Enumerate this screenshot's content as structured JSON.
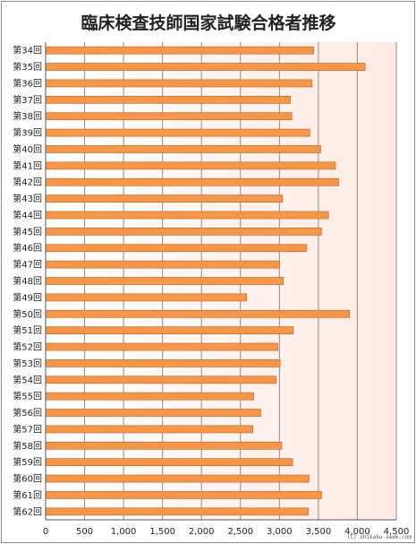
{
  "chart_data": {
    "type": "bar",
    "orientation": "horizontal",
    "title": "臨床検査技師国家試験合格者推移",
    "categories": [
      "第34回",
      "第35回",
      "第36回",
      "第37回",
      "第38回",
      "第39回",
      "第40回",
      "第41回",
      "第42回",
      "第43回",
      "第44回",
      "第45回",
      "第46回",
      "第47回",
      "第48回",
      "第49回",
      "第50回",
      "第51回",
      "第52回",
      "第53回",
      "第54回",
      "第55回",
      "第56回",
      "第57回",
      "第58回",
      "第59回",
      "第60回",
      "第61回",
      "第62回"
    ],
    "values": [
      3440,
      4100,
      3420,
      3140,
      3160,
      3390,
      3530,
      3720,
      3760,
      3040,
      3630,
      3540,
      3350,
      3000,
      3050,
      2580,
      3900,
      3180,
      2980,
      3010,
      2960,
      2670,
      2760,
      2660,
      3030,
      3170,
      3380,
      3540,
      3370
    ],
    "xlim": [
      0,
      4500
    ],
    "xticks": [
      "0",
      "500",
      "1,000",
      "1,500",
      "2,000",
      "2,500",
      "3,000",
      "3,500",
      "4,000",
      "4,500"
    ],
    "grid": true,
    "legend": "none",
    "colors": {
      "bar_fill": "#f79646",
      "bar_stroke": "#b8642a",
      "plot_bg_low": "#ffffff",
      "plot_bg_high": "#fde9e2",
      "grid": "#8c8c8c"
    }
  },
  "credit": "(C) shikaku-seek.com"
}
